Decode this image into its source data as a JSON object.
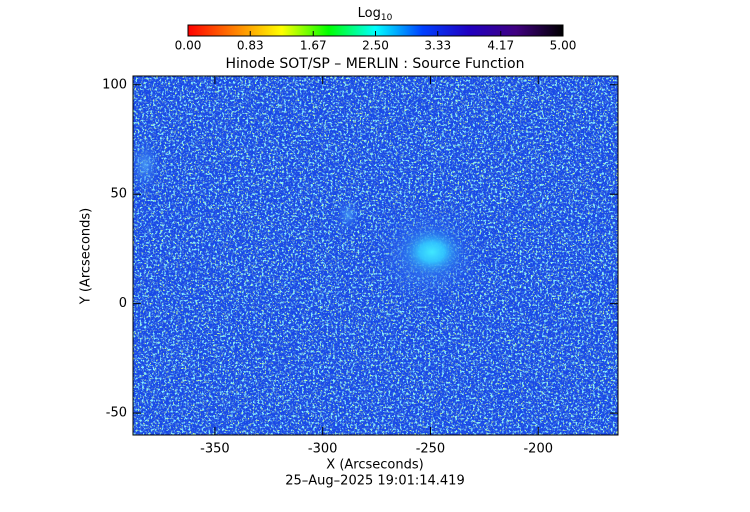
{
  "chart_data": {
    "type": "image",
    "title": "Hinode SOT/SP – MERLIN : Source Function",
    "xlabel": "X (Arcseconds)",
    "ylabel": "Y (Arcseconds)",
    "footer": "25–Aug–2025 19:01:14.419",
    "xlim": [
      -388,
      -163
    ],
    "ylim": [
      -60,
      104
    ],
    "xticks": [
      -350,
      -300,
      -250,
      -200
    ],
    "yticks": [
      -50,
      0,
      50,
      100
    ],
    "colorbar_label": "Log",
    "colorbar_label_subscript": "10",
    "clim": [
      0,
      5
    ],
    "colorbar_ticks": [
      {
        "value": 0,
        "label": "0.00"
      },
      0.83,
      1.67,
      {
        "value": 2.5,
        "label": "2.50"
      },
      3.33,
      4.17,
      {
        "value": 5,
        "label": "5.00"
      }
    ],
    "colormap": [
      "#ff0000",
      "#ff8000",
      "#ffff00",
      "#00ff00",
      "#00ffff",
      "#0040ff",
      "#2000c0",
      "#400080",
      "#000000"
    ],
    "image_color": "#1848e8"
  }
}
